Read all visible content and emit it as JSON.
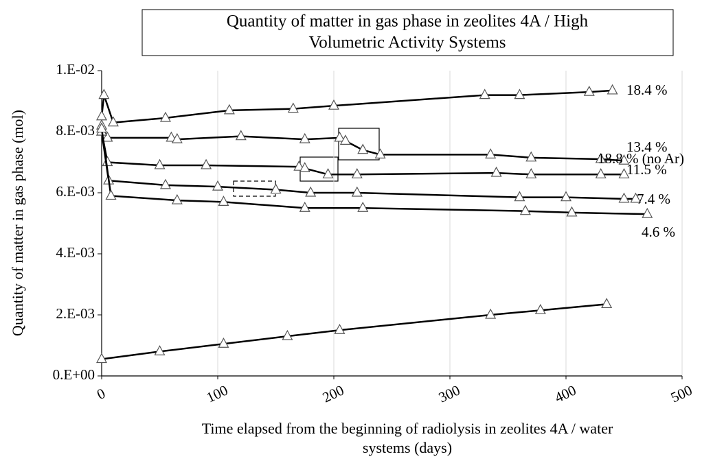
{
  "chart_data": {
    "type": "line",
    "title": [
      "Quantity of matter in gas phase in zeolites 4A / High",
      "Volumetric Activity Systems"
    ],
    "x_label": [
      "Time elapsed from the beginning of radiolysis in zeolites 4A / water",
      "systems (days)"
    ],
    "y_label": "Quantity of matter in gas phase (mol)",
    "xlim": [
      0,
      500
    ],
    "xticks": [
      0,
      100,
      200,
      300,
      400,
      500
    ],
    "ylim": [
      0,
      0.01
    ],
    "yticks": [
      {
        "value": 0,
        "label": "0.E+00"
      },
      {
        "value": 0.002,
        "label": "2.E-03"
      },
      {
        "value": 0.004,
        "label": "4.E-03"
      },
      {
        "value": 0.006,
        "label": "6.E-03"
      },
      {
        "value": 0.008,
        "label": "8.E-03"
      },
      {
        "value": 0.01,
        "label": "1.E-02"
      }
    ],
    "grid": "x",
    "series": [
      {
        "name": "18.4 %",
        "color": "#000000",
        "x": [
          0,
          2,
          10,
          55,
          110,
          165,
          200,
          330,
          360,
          420,
          440
        ],
        "values": [
          0.0085,
          0.0092,
          0.0083,
          0.00845,
          0.0087,
          0.00875,
          0.00885,
          0.0092,
          0.0092,
          0.0093,
          0.00935
        ]
      },
      {
        "name": "13.4 %",
        "color": "#000000",
        "x": [
          0,
          5,
          60,
          65,
          120,
          175,
          205,
          210,
          225,
          240,
          335,
          370,
          430,
          450
        ],
        "values": [
          0.0082,
          0.0078,
          0.0078,
          0.00775,
          0.00785,
          0.00775,
          0.0078,
          0.0077,
          0.0074,
          0.00725,
          0.00725,
          0.00715,
          0.0071,
          0.00705
        ]
      },
      {
        "name": "11.5 %",
        "color": "#000000",
        "x": [
          0,
          5,
          50,
          90,
          170,
          175,
          195,
          220,
          340,
          370,
          430,
          450
        ],
        "values": [
          0.008,
          0.007,
          0.0069,
          0.0069,
          0.00685,
          0.0068,
          0.0066,
          0.0066,
          0.00665,
          0.0066,
          0.0066,
          0.0066
        ]
      },
      {
        "name": "7.4 %",
        "color": "#000000",
        "x": [
          0,
          6,
          55,
          100,
          150,
          180,
          220,
          360,
          400,
          450,
          460
        ],
        "values": [
          0.008,
          0.0064,
          0.00625,
          0.0062,
          0.0061,
          0.006,
          0.006,
          0.00585,
          0.00585,
          0.0058,
          0.0058
        ]
      },
      {
        "name": "4.6 %",
        "color": "#000000",
        "x": [
          0,
          8,
          65,
          105,
          175,
          225,
          365,
          405,
          470
        ],
        "values": [
          0.0081,
          0.0059,
          0.00575,
          0.0057,
          0.0055,
          0.0055,
          0.0054,
          0.00535,
          0.0053
        ]
      },
      {
        "name": "18.8 % (no Ar)",
        "color": "#000000",
        "x": [
          0,
          50,
          105,
          160,
          205,
          335,
          378,
          435
        ],
        "values": [
          0.00055,
          0.0008,
          0.00105,
          0.0013,
          0.0015,
          0.002,
          0.00215,
          0.00235
        ]
      }
    ]
  }
}
